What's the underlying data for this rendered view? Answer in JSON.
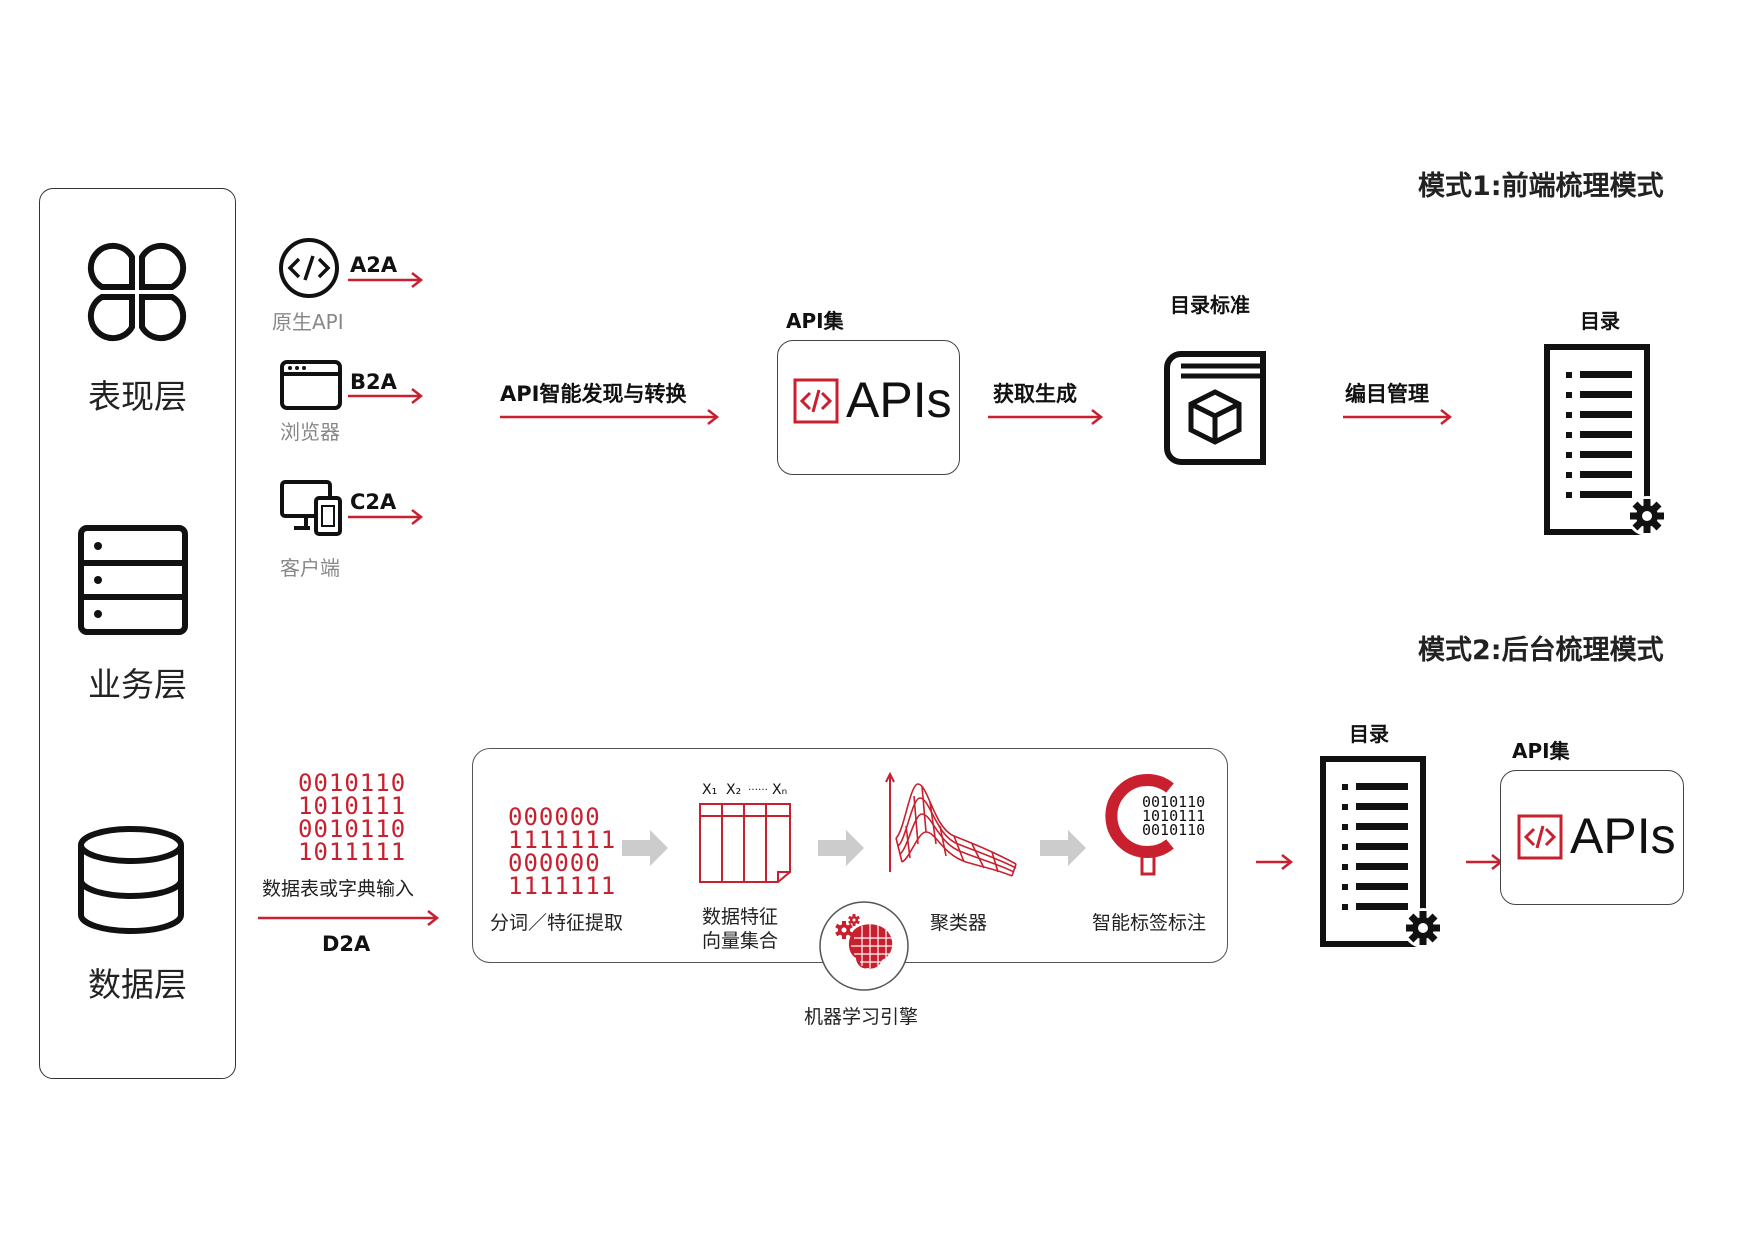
{
  "colors": {
    "accent": "#c8202f",
    "text": "#111111",
    "muted": "#888888",
    "gray_arrow": "#cccccc"
  },
  "layers": [
    {
      "label": "表现层",
      "icon": "clover-icon"
    },
    {
      "label": "业务层",
      "icon": "server-icon"
    },
    {
      "label": "数据层",
      "icon": "database-icon"
    }
  ],
  "mode1": {
    "title": "模式1:前端梳理模式",
    "sources": [
      {
        "code": "A2A",
        "sub": "原生API",
        "icon": "code-circle-icon"
      },
      {
        "code": "B2A",
        "sub": "浏览器",
        "icon": "browser-window-icon"
      },
      {
        "code": "C2A",
        "sub": "客户端",
        "icon": "devices-icon"
      }
    ],
    "step1": "API智能发现与转换",
    "apiset_caption": "API集",
    "api_text": "APIs",
    "step2": "获取生成",
    "catalog_std_caption": "目录标准",
    "step3": "编目管理",
    "catalog_caption": "目录"
  },
  "mode2": {
    "title": "模式2:后台梳理模式",
    "source_binary": [
      "0010110",
      "1010111",
      "0010110",
      "1011111"
    ],
    "source_label": "数据表或字典输入",
    "source_code": "D2A",
    "pipeline": {
      "tokenize_binary": [
        "000000",
        "1111111",
        "000000",
        "1111111"
      ],
      "tokenize_label": "分词／特征提取",
      "vector_headers": [
        "X₁",
        "X₂",
        "……",
        "Xₙ"
      ],
      "vector_label_1": "数据特征",
      "vector_label_2": "向量集合",
      "cluster_label": "聚类器",
      "tag_binary": [
        "0010110",
        "1010111",
        "0010110"
      ],
      "tag_label": "智能标签标注",
      "engine_label": "机器学习引擎"
    },
    "catalog_caption": "目录",
    "apiset_caption": "API集",
    "api_text": "APIs"
  }
}
